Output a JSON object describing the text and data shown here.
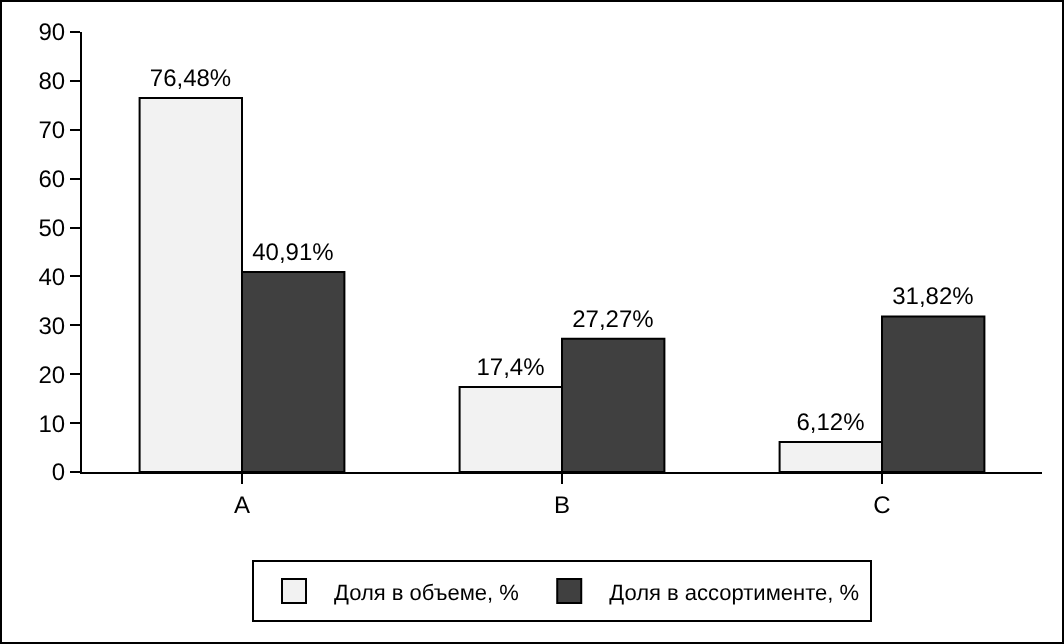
{
  "chart_data": {
    "type": "bar",
    "categories": [
      "A",
      "B",
      "C"
    ],
    "series": [
      {
        "name": "Доля в объеме, %",
        "color": "#f2f2f2",
        "values": [
          76.48,
          17.4,
          6.12
        ],
        "value_labels": [
          "76,48%",
          "17,4%",
          "6,12%"
        ]
      },
      {
        "name": "Доля в ассортименте, %",
        "color": "#404040",
        "values": [
          40.91,
          27.27,
          31.82
        ],
        "value_labels": [
          "40,91%",
          "27,27%",
          "31,82%"
        ]
      }
    ],
    "ylim": [
      0,
      90
    ],
    "yticks": [
      0,
      10,
      20,
      30,
      40,
      50,
      60,
      70,
      80,
      90
    ],
    "grid": false,
    "legend": "bottom"
  }
}
